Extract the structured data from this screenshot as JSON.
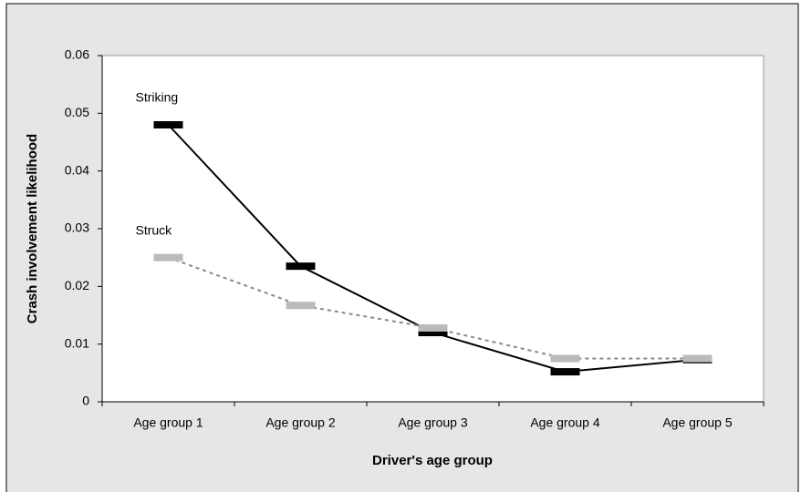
{
  "chart_data": {
    "type": "line",
    "xlabel": "Driver's age group",
    "ylabel": "Crash involvement likelihood",
    "categories": [
      "Age group 1",
      "Age group 2",
      "Age group 3",
      "Age group 4",
      "Age group 5"
    ],
    "series": [
      {
        "name": "Striking",
        "color": "#000000",
        "line_style": "solid",
        "values": [
          0.048,
          0.0235,
          0.012,
          0.0052,
          0.0073
        ]
      },
      {
        "name": "Struck",
        "color": "#bbbbbb",
        "line_color": "#888888",
        "line_style": "dashed",
        "values": [
          0.025,
          0.0167,
          0.0128,
          0.0075,
          0.0075
        ]
      }
    ],
    "ylim": [
      0,
      0.06
    ],
    "yticks": [
      0,
      0.01,
      0.02,
      0.03,
      0.04,
      0.05,
      0.06
    ]
  }
}
